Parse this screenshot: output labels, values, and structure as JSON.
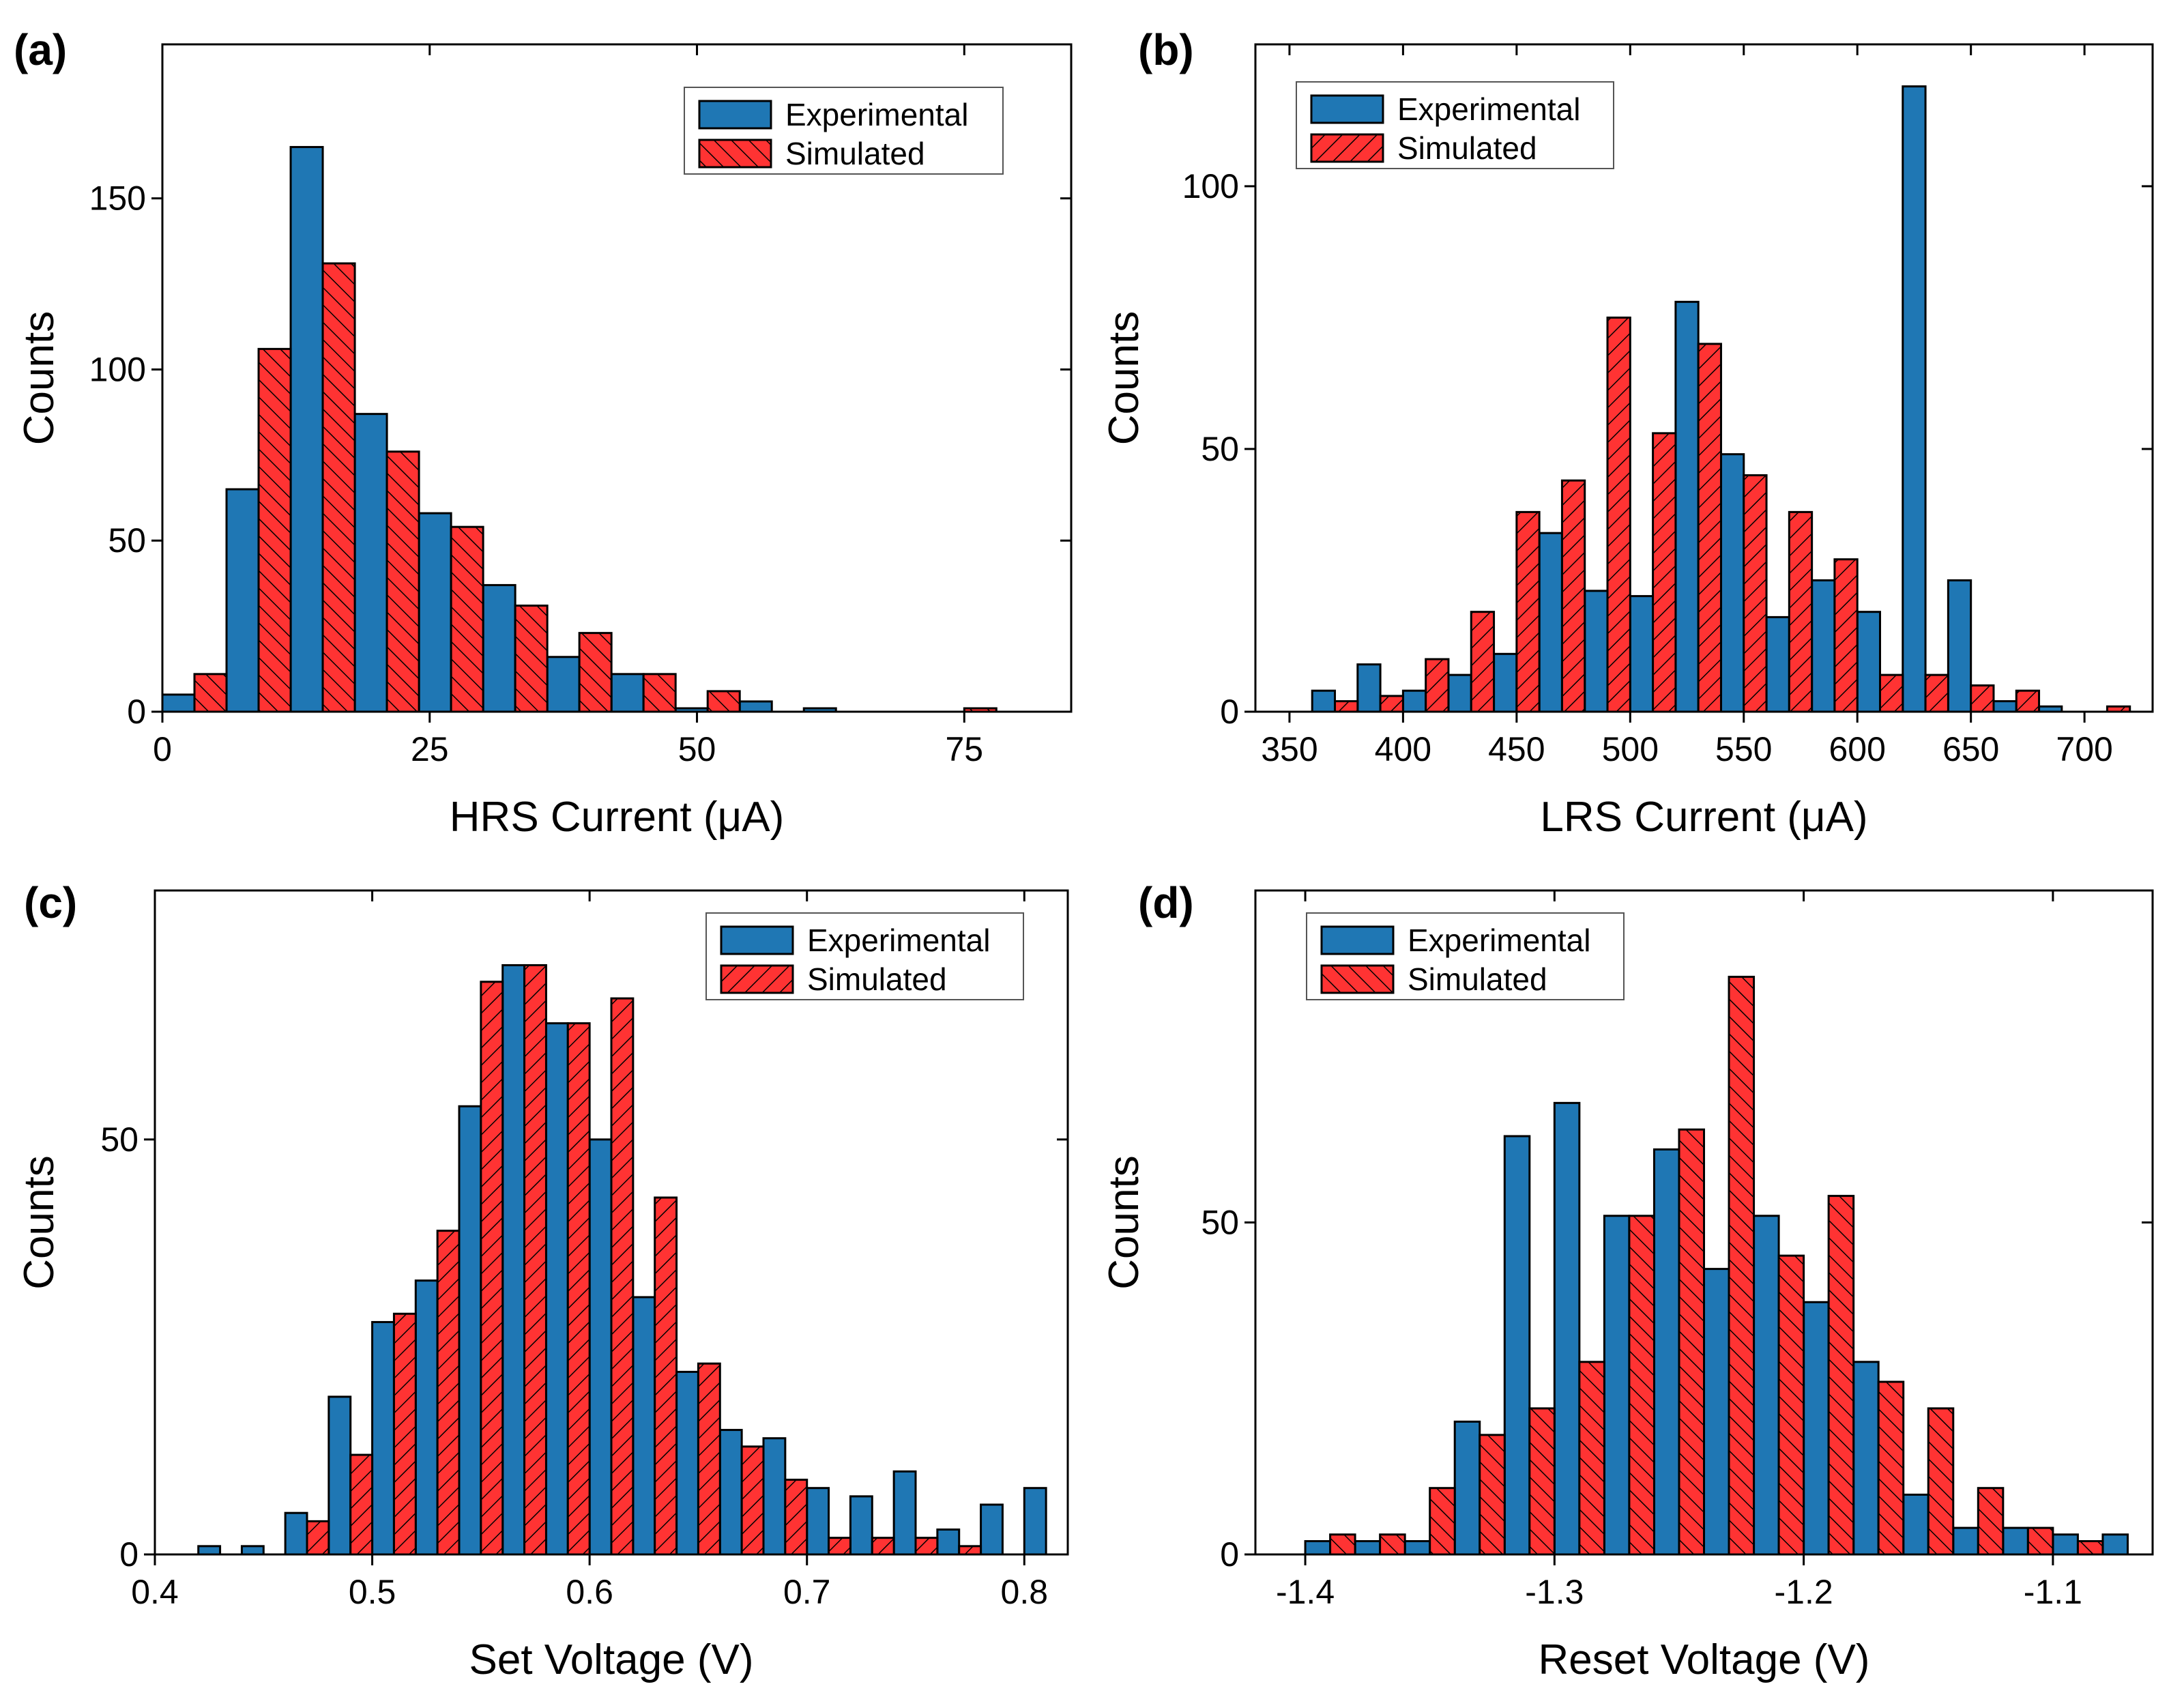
{
  "figure": {
    "colors": {
      "experimental": "#1f77b4",
      "simulated": "#ff3333",
      "outline": "#000000"
    },
    "legend_entries": [
      "Experimental",
      "Simulated"
    ]
  },
  "chart_data": [
    {
      "panel_label": "(a)",
      "type": "bar",
      "xlabel": "HRS Current (μA)",
      "ylabel": "Counts",
      "xlim": [
        0,
        85
      ],
      "ylim": [
        0,
        195
      ],
      "xticks": [
        0,
        25,
        50,
        75
      ],
      "yticks": [
        0,
        50,
        100,
        150
      ],
      "ytick_labels": [
        "0",
        "50",
        "100",
        "150"
      ],
      "legend": "top-right",
      "bin_width": 6,
      "series": [
        {
          "name": "Experimental",
          "x": [
            1.5,
            7.5,
            13.5,
            19.5,
            25.5,
            31.5,
            37.5,
            43.5,
            49.5,
            55.5,
            61.5,
            67.5,
            73.5
          ],
          "values": [
            5,
            65,
            165,
            87,
            58,
            37,
            16,
            11,
            1,
            3,
            1,
            0,
            0
          ]
        },
        {
          "name": "Simulated",
          "x": [
            4.5,
            10.5,
            16.5,
            22.5,
            28.5,
            34.5,
            40.5,
            46.5,
            52.5,
            58.5,
            64.5,
            70.5,
            76.5
          ],
          "values": [
            11,
            106,
            131,
            76,
            54,
            31,
            23,
            11,
            6,
            0,
            0,
            0,
            1
          ]
        }
      ]
    },
    {
      "panel_label": "(b)",
      "type": "bar",
      "xlabel": "LRS Current (μA)",
      "ylabel": "Counts",
      "xlim": [
        335,
        730
      ],
      "ylim": [
        0,
        127
      ],
      "xticks": [
        350,
        400,
        450,
        500,
        550,
        600,
        650,
        700
      ],
      "yticks": [
        0,
        50,
        100
      ],
      "ytick_labels": [
        "0",
        "50",
        "100"
      ],
      "legend": "top-left",
      "bin_width": 20,
      "series": [
        {
          "name": "Experimental",
          "x": [
            365,
            385,
            405,
            425,
            445,
            465,
            485,
            505,
            525,
            545,
            565,
            585,
            605,
            625,
            645,
            665,
            685
          ],
          "values": [
            4,
            9,
            4,
            7,
            11,
            34,
            23,
            22,
            78,
            49,
            18,
            25,
            19,
            119,
            25,
            2,
            1
          ]
        },
        {
          "name": "Simulated",
          "x": [
            375,
            395,
            415,
            435,
            455,
            475,
            495,
            515,
            535,
            555,
            575,
            595,
            615,
            635,
            655,
            675,
            715
          ],
          "values": [
            2,
            3,
            10,
            19,
            38,
            44,
            75,
            53,
            70,
            45,
            38,
            29,
            7,
            7,
            5,
            4,
            1
          ]
        }
      ]
    },
    {
      "panel_label": "(c)",
      "type": "bar",
      "xlabel": "Set Voltage (V)",
      "ylabel": "Counts",
      "xlim": [
        0.4,
        0.82
      ],
      "ylim": [
        0,
        80
      ],
      "xticks": [
        0.4,
        0.5,
        0.6,
        0.7,
        0.8
      ],
      "xtick_labels": [
        "0.4",
        "0.5",
        "0.6",
        "0.7",
        "0.8"
      ],
      "yticks": [
        0,
        50
      ],
      "ytick_labels": [
        "0",
        "50"
      ],
      "legend": "top-right",
      "bin_width": 0.02,
      "series": [
        {
          "name": "Experimental",
          "x": [
            0.425,
            0.445,
            0.465,
            0.485,
            0.505,
            0.525,
            0.545,
            0.565,
            0.585,
            0.605,
            0.625,
            0.645,
            0.665,
            0.685,
            0.705,
            0.725,
            0.745,
            0.765,
            0.785,
            0.805
          ],
          "values": [
            1,
            1,
            5,
            19,
            28,
            33,
            54,
            71,
            64,
            50,
            31,
            22,
            15,
            14,
            8,
            7,
            10,
            3,
            6,
            8
          ]
        },
        {
          "name": "Simulated",
          "x": [
            0.435,
            0.455,
            0.475,
            0.495,
            0.515,
            0.535,
            0.555,
            0.575,
            0.595,
            0.615,
            0.635,
            0.655,
            0.675,
            0.695,
            0.715,
            0.735,
            0.755,
            0.775
          ],
          "values": [
            0,
            0,
            4,
            12,
            29,
            39,
            69,
            71,
            64,
            67,
            43,
            23,
            13,
            9,
            2,
            2,
            2,
            1
          ]
        }
      ]
    },
    {
      "panel_label": "(d)",
      "type": "bar",
      "xlabel": "Reset Voltage (V)",
      "ylabel": "Counts",
      "xlim": [
        -1.42,
        -1.06
      ],
      "ylim": [
        0,
        100
      ],
      "xticks": [
        -1.4,
        -1.3,
        -1.2,
        -1.1
      ],
      "xtick_labels": [
        "-1.4",
        "-1.3",
        "-1.2",
        "-1.1"
      ],
      "yticks": [
        0,
        50
      ],
      "ytick_labels": [
        "0",
        "50"
      ],
      "legend": "top-left",
      "bin_width": 0.02,
      "series": [
        {
          "name": "Experimental",
          "x": [
            -1.395,
            -1.375,
            -1.355,
            -1.335,
            -1.315,
            -1.295,
            -1.275,
            -1.255,
            -1.235,
            -1.215,
            -1.195,
            -1.175,
            -1.155,
            -1.135,
            -1.115,
            -1.095,
            -1.075
          ],
          "values": [
            2,
            2,
            2,
            20,
            63,
            68,
            51,
            61,
            43,
            51,
            38,
            29,
            9,
            4,
            4,
            3,
            3
          ]
        },
        {
          "name": "Simulated",
          "x": [
            -1.385,
            -1.365,
            -1.345,
            -1.325,
            -1.305,
            -1.285,
            -1.265,
            -1.245,
            -1.225,
            -1.205,
            -1.185,
            -1.165,
            -1.145,
            -1.125,
            -1.105,
            -1.085
          ],
          "values": [
            3,
            3,
            10,
            18,
            22,
            29,
            51,
            64,
            87,
            45,
            54,
            26,
            22,
            10,
            4,
            2
          ]
        }
      ]
    }
  ]
}
